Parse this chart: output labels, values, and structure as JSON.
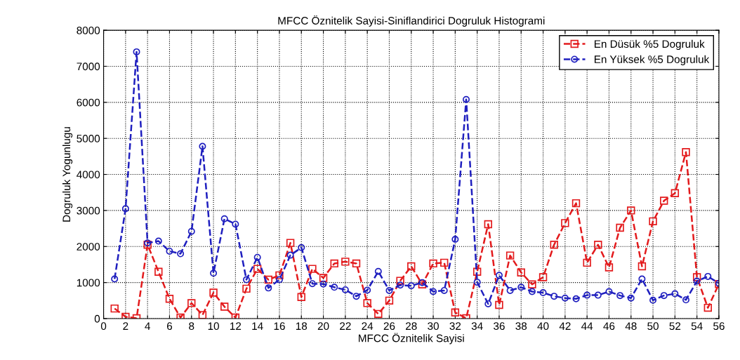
{
  "chart_data": {
    "type": "line",
    "title": "MFCC Öznitelik Sayisi-Siniflandirici Dogruluk Histogrami",
    "xlabel": "MFCC Öznitelik Sayisi",
    "ylabel": "Dogruluk Yogunlugu",
    "x": [
      1,
      2,
      3,
      4,
      5,
      6,
      7,
      8,
      9,
      10,
      11,
      12,
      13,
      14,
      15,
      16,
      17,
      18,
      19,
      20,
      21,
      22,
      23,
      24,
      25,
      26,
      27,
      28,
      29,
      30,
      31,
      32,
      33,
      34,
      35,
      36,
      37,
      38,
      39,
      40,
      41,
      42,
      43,
      44,
      45,
      46,
      47,
      48,
      49,
      50,
      51,
      52,
      53,
      54,
      55,
      56
    ],
    "series": [
      {
        "name": "En Düsük %5 Dogruluk",
        "color": "#e31a1c",
        "marker": "square",
        "values": [
          280,
          50,
          10,
          2050,
          1300,
          550,
          30,
          430,
          100,
          720,
          330,
          30,
          830,
          1380,
          1080,
          1200,
          2100,
          600,
          1380,
          1130,
          1530,
          1580,
          1530,
          430,
          130,
          500,
          1050,
          1450,
          950,
          1530,
          1550,
          170,
          10,
          1300,
          2620,
          380,
          1750,
          1280,
          950,
          1150,
          2050,
          2650,
          3200,
          1550,
          2050,
          1420,
          2520,
          3000,
          1450,
          2700,
          3270,
          3480,
          4620,
          1150,
          300,
          960
        ]
      },
      {
        "name": "En Yüksek %5 Dogruluk",
        "color": "#1f1fbf",
        "marker": "circle",
        "values": [
          1100,
          3050,
          7400,
          2100,
          2150,
          1870,
          1800,
          2420,
          4780,
          1260,
          2770,
          2620,
          1080,
          1700,
          850,
          1080,
          1760,
          1970,
          970,
          960,
          870,
          800,
          620,
          790,
          1310,
          780,
          930,
          910,
          1000,
          750,
          780,
          2200,
          6080,
          1010,
          410,
          1200,
          780,
          870,
          750,
          720,
          620,
          570,
          550,
          650,
          650,
          750,
          640,
          570,
          1100,
          510,
          640,
          690,
          520,
          1040,
          1170,
          980
        ]
      }
    ],
    "xlim": [
      0,
      56
    ],
    "xticks": [
      0,
      2,
      4,
      6,
      8,
      10,
      12,
      14,
      16,
      18,
      20,
      22,
      24,
      26,
      28,
      30,
      32,
      34,
      36,
      38,
      40,
      42,
      44,
      46,
      48,
      50,
      52,
      54,
      56
    ],
    "ylim": [
      0,
      8000
    ],
    "yticks": [
      0,
      1000,
      2000,
      3000,
      4000,
      5000,
      6000,
      7000,
      8000
    ],
    "grid": true,
    "legend": "top right",
    "line_style": "dashed"
  }
}
